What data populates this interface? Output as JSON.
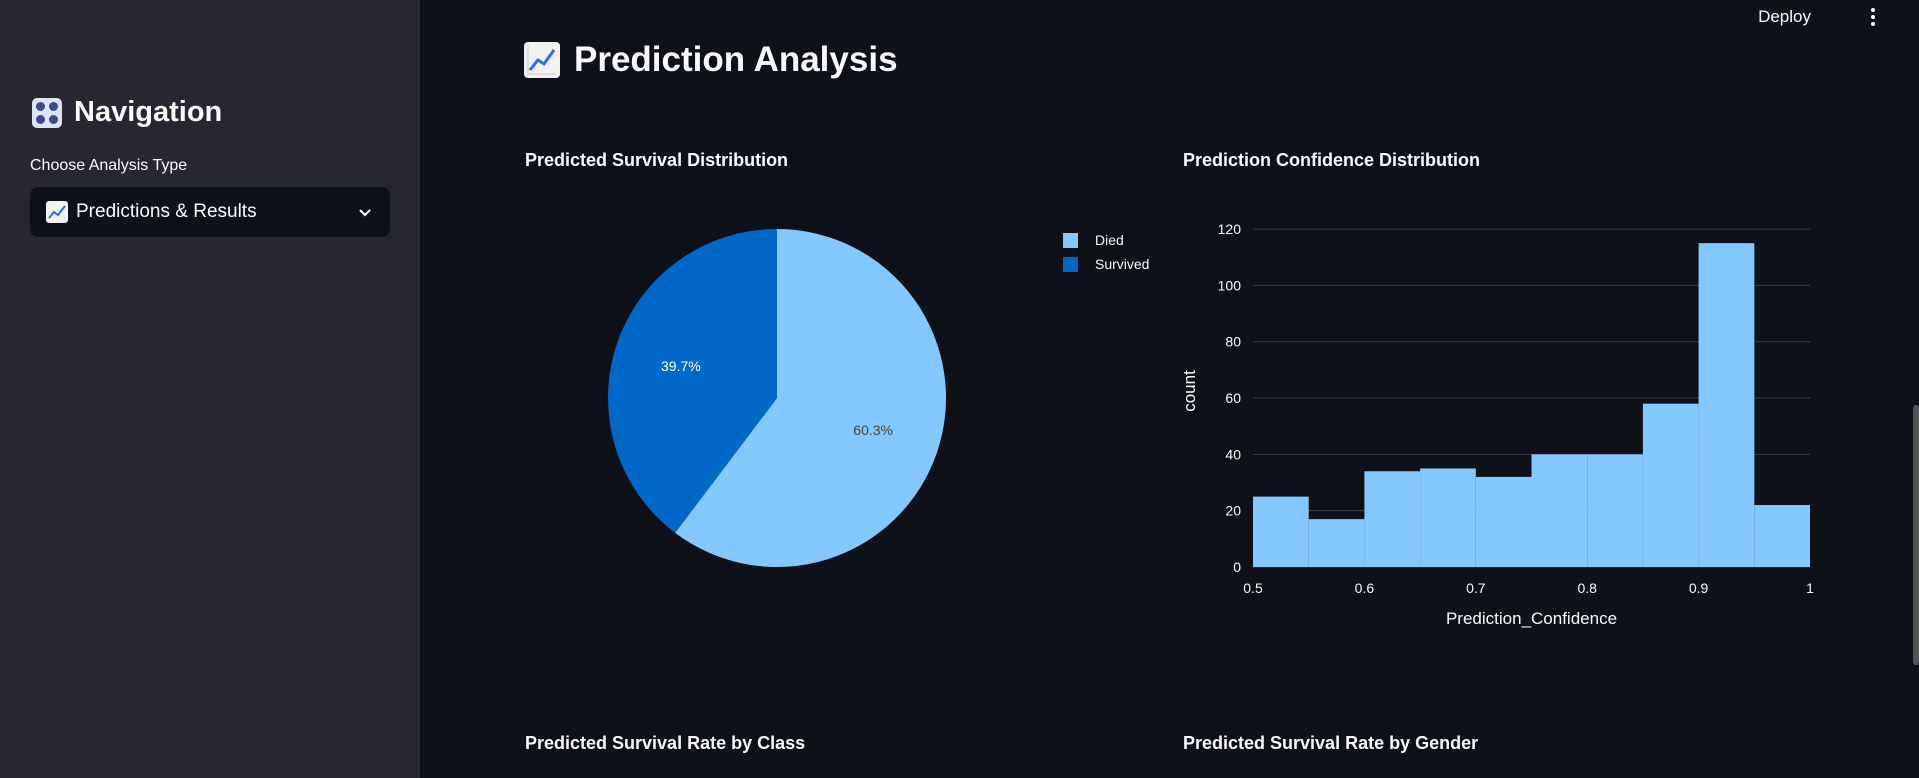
{
  "sidebar": {
    "title": "Navigation",
    "choose_label": "Choose Analysis Type",
    "selected_option": "Predictions & Results"
  },
  "header": {
    "deploy_label": "Deploy"
  },
  "main": {
    "title": "Prediction Analysis",
    "sections": {
      "pie_title": "Predicted Survival Distribution",
      "hist_title": "Prediction Confidence Distribution",
      "class_title": "Predicted Survival Rate by Class",
      "gender_title": "Predicted Survival Rate by Gender"
    }
  },
  "colors": {
    "died": "#83c9ff",
    "survived": "#0068c9",
    "background": "#0e1117",
    "sidebar": "#262730"
  },
  "chart_data": [
    {
      "type": "pie",
      "title": "Predicted Survival Distribution",
      "labels": [
        "Died",
        "Survived"
      ],
      "values": [
        60.3,
        39.7
      ],
      "text_labels": [
        "60.3%",
        "39.7%"
      ],
      "legend": "top-right"
    },
    {
      "type": "bar",
      "title": "Prediction Confidence Distribution",
      "xlabel": "Prediction_Confidence",
      "ylabel": "count",
      "bins": [
        0.5,
        0.55,
        0.6,
        0.65,
        0.7,
        0.75,
        0.8,
        0.85,
        0.9,
        0.95
      ],
      "bin_width": 0.05,
      "values": [
        25,
        17,
        34,
        35,
        32,
        40,
        40,
        58,
        115,
        22
      ],
      "xlim": [
        0.5,
        1
      ],
      "ylim": [
        0,
        125
      ],
      "x_ticks": [
        "0.5",
        "0.6",
        "0.7",
        "0.8",
        "0.9",
        "1"
      ],
      "y_ticks": [
        "0",
        "20",
        "40",
        "60",
        "80",
        "100",
        "120"
      ],
      "grid": true
    }
  ]
}
